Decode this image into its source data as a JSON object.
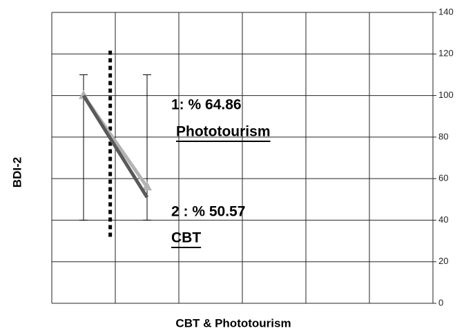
{
  "chart_data": {
    "type": "line",
    "y_label": "BDI-2",
    "x_label": "CBT & Phototourism",
    "x": [
      0.5,
      1.5
    ],
    "xlim": [
      0,
      6
    ],
    "xticks": [
      0,
      1,
      2,
      3,
      4,
      5,
      6
    ],
    "ylim": [
      0,
      140
    ],
    "yticks": [
      0,
      20,
      40,
      60,
      80,
      100,
      120,
      140
    ],
    "y_axis_side": "right",
    "grid": true,
    "series": [
      {
        "name": "Phototourism",
        "color": "#b3b3b3",
        "values": [
          100,
          56
        ],
        "marker": "triangle"
      },
      {
        "name": "CBT",
        "color": "#595959",
        "values": [
          100,
          51
        ],
        "marker": "none"
      }
    ],
    "error_low": [
      40,
      40
    ],
    "error_high": [
      110,
      110
    ],
    "divider": {
      "x": 0.92,
      "ylim": [
        32,
        122
      ]
    },
    "annotations": [
      {
        "text": "1: % 64.86",
        "series": 0
      },
      {
        "text": "Phototourism",
        "series": 0
      },
      {
        "text": "2 : % 50.57",
        "series": 1
      },
      {
        "text": "CBT",
        "series": 1
      }
    ]
  }
}
